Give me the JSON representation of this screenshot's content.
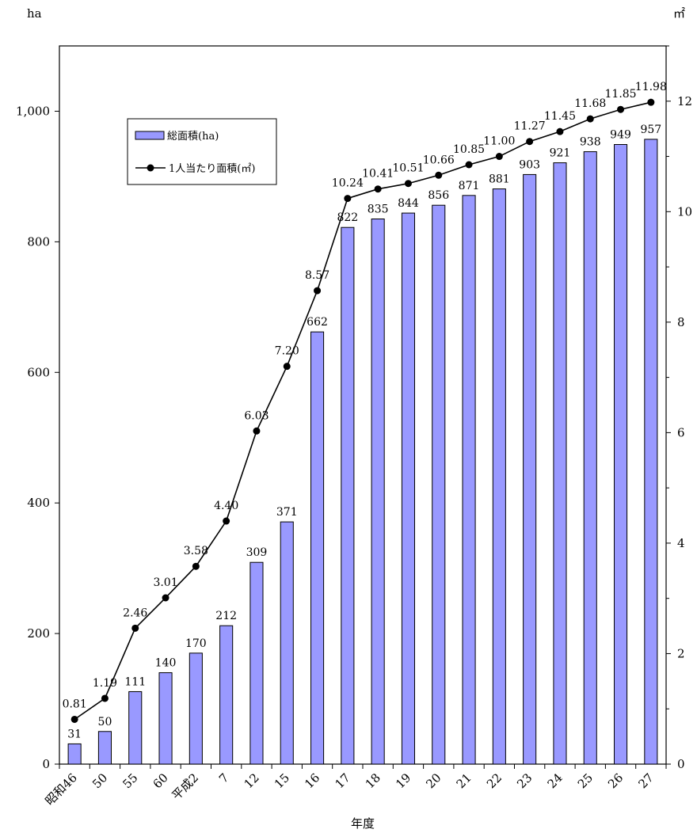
{
  "chart_data": {
    "type": "bar+line",
    "left_unit": "ha",
    "right_unit": "㎡",
    "xlabel": "年度",
    "categories": [
      "昭和46",
      "50",
      "55",
      "60",
      "平成2",
      "7",
      "12",
      "15",
      "16",
      "17",
      "18",
      "19",
      "20",
      "21",
      "22",
      "23",
      "24",
      "25",
      "26",
      "27"
    ],
    "series": [
      {
        "name": "総面積(ha)",
        "kind": "bar",
        "axis": "left",
        "color": "#9999ff",
        "values": [
          31,
          50,
          111,
          140,
          170,
          212,
          309,
          371,
          662,
          822,
          835,
          844,
          856,
          871,
          881,
          903,
          921,
          938,
          949,
          957
        ],
        "labels": [
          "31",
          "50",
          "111",
          "140",
          "170",
          "212",
          "309",
          "371",
          "662",
          "822",
          "835",
          "844",
          "856",
          "871",
          "881",
          "903",
          "921",
          "938",
          "949",
          "957"
        ]
      },
      {
        "name": "1人当たり面積(㎡)",
        "kind": "line",
        "axis": "right",
        "color": "#000000",
        "values": [
          0.81,
          1.19,
          2.46,
          3.01,
          3.58,
          4.4,
          6.03,
          7.2,
          8.57,
          10.24,
          10.41,
          10.51,
          10.66,
          10.85,
          11.0,
          11.27,
          11.45,
          11.68,
          11.85,
          11.98
        ],
        "labels": [
          "0.81",
          "1.19",
          "2.46",
          "3.01",
          "3.58",
          "4.40",
          "6.03",
          "7.20",
          "8.57",
          "10.24",
          "10.41",
          "10.51",
          "10.66",
          "10.85",
          "11.00",
          "11.27",
          "11.45",
          "11.68",
          "11.85",
          "11.98"
        ]
      }
    ],
    "left_axis": {
      "ylim": [
        0,
        1100
      ],
      "ticks": [
        0,
        200,
        400,
        600,
        800,
        1000
      ],
      "tick_labels": [
        "0",
        "200",
        "400",
        "600",
        "800",
        "1,000"
      ]
    },
    "right_axis": {
      "ylim": [
        0,
        13
      ],
      "ticks": [
        0,
        2,
        4,
        6,
        8,
        10,
        12
      ],
      "tick_labels": [
        "0",
        "2",
        "4",
        "6",
        "8",
        "10",
        "12"
      ]
    },
    "grid": false,
    "legend_position": "top-left"
  }
}
